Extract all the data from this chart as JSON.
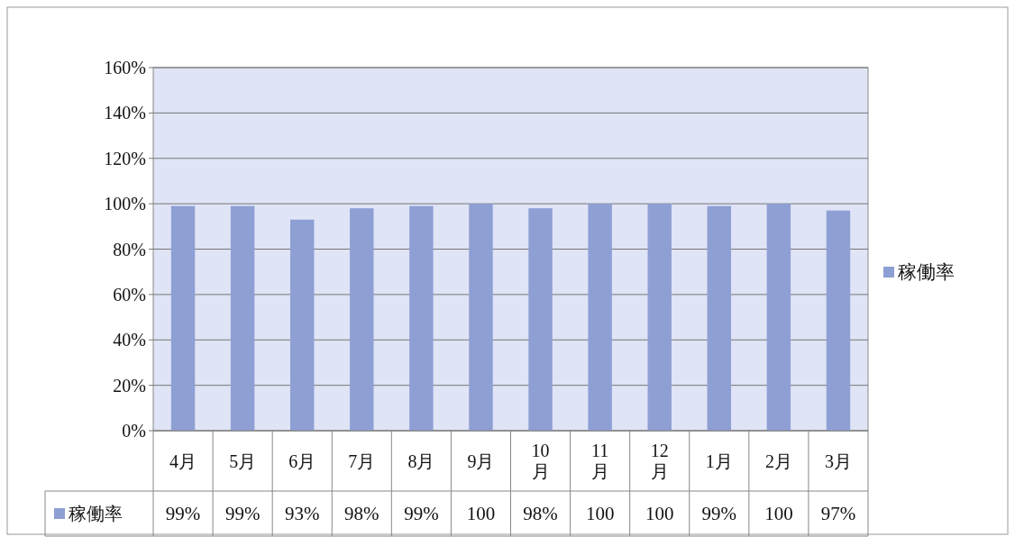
{
  "chart_data": {
    "type": "bar",
    "categories": [
      "4月",
      "5月",
      "6月",
      "7月",
      "8月",
      "9月",
      "10\n月",
      "11\n月",
      "12\n月",
      "1月",
      "2月",
      "3月"
    ],
    "series": [
      {
        "name": "稼働率",
        "color": "#8e9fd4",
        "values": [
          99,
          99,
          93,
          98,
          99,
          100,
          98,
          100,
          100,
          99,
          100,
          97
        ],
        "value_labels": [
          "99%",
          "99%",
          "93%",
          "98%",
          "99%",
          "100",
          "98%",
          "100",
          "100",
          "99%",
          "100",
          "97%"
        ]
      }
    ],
    "ylim": [
      0,
      160
    ],
    "yticks": [
      {
        "value": 0,
        "label": "0%"
      },
      {
        "value": 20,
        "label": "20%"
      },
      {
        "value": 40,
        "label": "40%"
      },
      {
        "value": 60,
        "label": "60%"
      },
      {
        "value": 80,
        "label": "80%"
      },
      {
        "value": 100,
        "label": "100%"
      },
      {
        "value": 120,
        "label": "120%"
      },
      {
        "value": 140,
        "label": "140%"
      },
      {
        "value": 160,
        "label": "160%"
      }
    ],
    "grid": "y",
    "legend": "right"
  }
}
